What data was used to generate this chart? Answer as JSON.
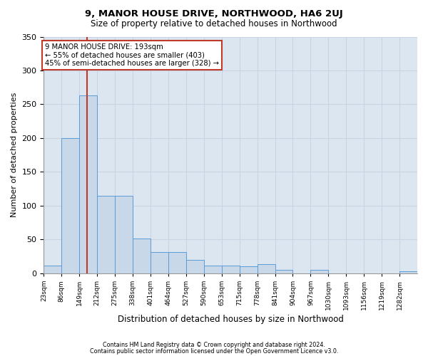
{
  "title": "9, MANOR HOUSE DRIVE, NORTHWOOD, HA6 2UJ",
  "subtitle": "Size of property relative to detached houses in Northwood",
  "xlabel": "Distribution of detached houses by size in Northwood",
  "ylabel": "Number of detached properties",
  "bin_labels": [
    "23sqm",
    "86sqm",
    "149sqm",
    "212sqm",
    "275sqm",
    "338sqm",
    "401sqm",
    "464sqm",
    "527sqm",
    "590sqm",
    "653sqm",
    "715sqm",
    "778sqm",
    "841sqm",
    "904sqm",
    "967sqm",
    "1030sqm",
    "1093sqm",
    "1156sqm",
    "1219sqm",
    "1282sqm"
  ],
  "bar_heights": [
    12,
    200,
    263,
    115,
    115,
    52,
    32,
    32,
    20,
    12,
    11,
    10,
    14,
    5,
    0,
    5,
    0,
    0,
    0,
    0,
    3
  ],
  "bar_color": "#c8d8e8",
  "bar_edge_color": "#5b9bd5",
  "property_bin_index": 2.45,
  "property_line_color": "#c0392b",
  "annotation_text": "9 MANOR HOUSE DRIVE: 193sqm\n← 55% of detached houses are smaller (403)\n45% of semi-detached houses are larger (328) →",
  "annotation_box_color": "#ffffff",
  "annotation_box_edge_color": "#c0392b",
  "grid_color": "#c8d4e4",
  "background_color": "#dce6f0",
  "ylim": [
    0,
    350
  ],
  "yticks": [
    0,
    50,
    100,
    150,
    200,
    250,
    300,
    350
  ],
  "footer_line1": "Contains HM Land Registry data © Crown copyright and database right 2024.",
  "footer_line2": "Contains public sector information licensed under the Open Government Licence v3.0."
}
